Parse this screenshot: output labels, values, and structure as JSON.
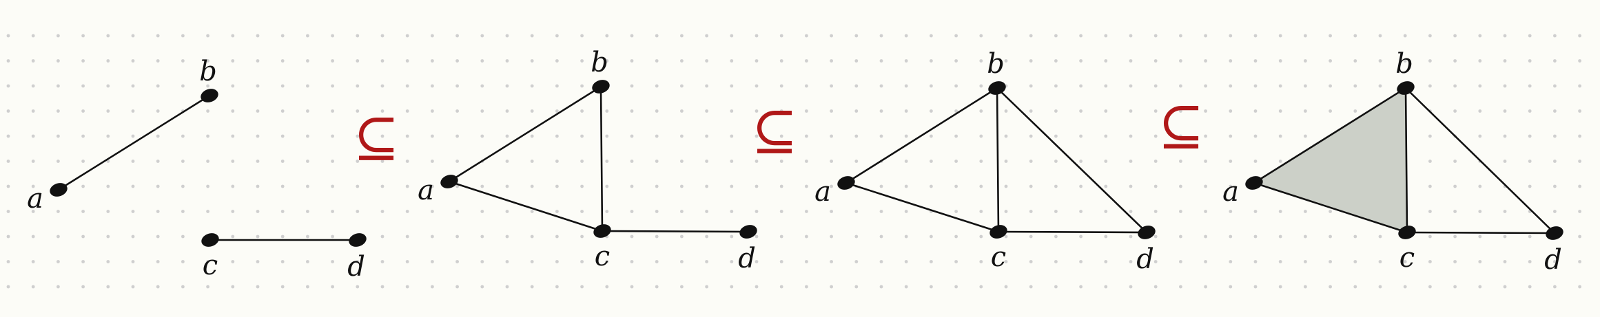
{
  "figure": {
    "description_free": true,
    "subset_symbol": "⊆",
    "colors": {
      "background": "#fcfcf7",
      "dots": "#cfcfcf",
      "ink": "#111111",
      "subset": "#b01818",
      "triangle_fill": "#ccd0c8"
    },
    "panels": [
      {
        "id": "panel-1",
        "vertices": [
          {
            "id": "a",
            "label": "a"
          },
          {
            "id": "b",
            "label": "b"
          },
          {
            "id": "c",
            "label": "c"
          },
          {
            "id": "d",
            "label": "d"
          }
        ],
        "edges": [
          [
            "a",
            "b"
          ],
          [
            "c",
            "d"
          ]
        ],
        "filled_triangles": []
      },
      {
        "id": "panel-2",
        "vertices": [
          {
            "id": "a",
            "label": "a"
          },
          {
            "id": "b",
            "label": "b"
          },
          {
            "id": "c",
            "label": "c"
          },
          {
            "id": "d",
            "label": "d"
          }
        ],
        "edges": [
          [
            "a",
            "b"
          ],
          [
            "a",
            "c"
          ],
          [
            "b",
            "c"
          ],
          [
            "c",
            "d"
          ]
        ],
        "filled_triangles": []
      },
      {
        "id": "panel-3",
        "vertices": [
          {
            "id": "a",
            "label": "a"
          },
          {
            "id": "b",
            "label": "b"
          },
          {
            "id": "c",
            "label": "c"
          },
          {
            "id": "d",
            "label": "d"
          }
        ],
        "edges": [
          [
            "a",
            "b"
          ],
          [
            "a",
            "c"
          ],
          [
            "b",
            "c"
          ],
          [
            "c",
            "d"
          ],
          [
            "b",
            "d"
          ]
        ],
        "filled_triangles": []
      },
      {
        "id": "panel-4",
        "vertices": [
          {
            "id": "a",
            "label": "a"
          },
          {
            "id": "b",
            "label": "b"
          },
          {
            "id": "c",
            "label": "c"
          },
          {
            "id": "d",
            "label": "d"
          }
        ],
        "edges": [
          [
            "a",
            "b"
          ],
          [
            "a",
            "c"
          ],
          [
            "b",
            "c"
          ],
          [
            "c",
            "d"
          ],
          [
            "b",
            "d"
          ]
        ],
        "filled_triangles": [
          [
            "a",
            "b",
            "c"
          ]
        ]
      }
    ]
  }
}
